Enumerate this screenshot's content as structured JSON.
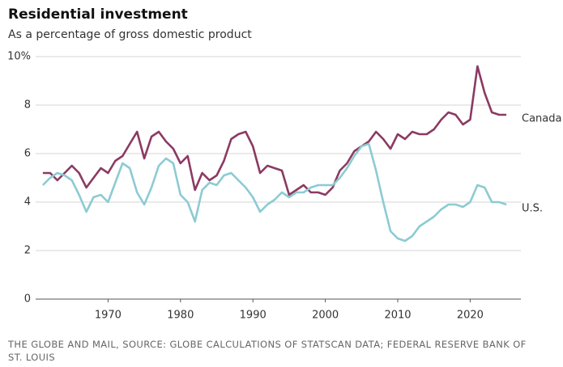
{
  "chart_data": {
    "type": "line",
    "title": "Residential investment",
    "subtitle": "As a percentage of gross domestic product",
    "source": "THE GLOBE AND MAIL, SOURCE: GLOBE CALCULATIONS OF STATSCAN DATA; FEDERAL RESERVE BANK OF ST. LOUIS",
    "x": [
      1961,
      1962,
      1963,
      1964,
      1965,
      1966,
      1967,
      1968,
      1969,
      1970,
      1971,
      1972,
      1973,
      1974,
      1975,
      1976,
      1977,
      1978,
      1979,
      1980,
      1981,
      1982,
      1983,
      1984,
      1985,
      1986,
      1987,
      1988,
      1989,
      1990,
      1991,
      1992,
      1993,
      1994,
      1995,
      1996,
      1997,
      1998,
      1999,
      2000,
      2001,
      2002,
      2003,
      2004,
      2005,
      2006,
      2007,
      2008,
      2009,
      2010,
      2011,
      2012,
      2013,
      2014,
      2015,
      2016,
      2017,
      2018,
      2019,
      2020,
      2021,
      2022,
      2023,
      2024,
      2025
    ],
    "series": [
      {
        "name": "Canada",
        "color": "#8b3a62",
        "values": [
          5.2,
          5.2,
          4.9,
          5.2,
          5.5,
          5.2,
          4.6,
          5.0,
          5.4,
          5.2,
          5.7,
          5.9,
          6.4,
          6.9,
          5.8,
          6.7,
          6.9,
          6.5,
          6.2,
          5.6,
          5.9,
          4.5,
          5.2,
          4.9,
          5.1,
          5.7,
          6.6,
          6.8,
          6.9,
          6.3,
          5.2,
          5.5,
          5.4,
          5.3,
          4.3,
          4.5,
          4.7,
          4.4,
          4.4,
          4.3,
          4.6,
          5.3,
          5.6,
          6.1,
          6.3,
          6.5,
          6.9,
          6.6,
          6.2,
          6.8,
          6.6,
          6.9,
          6.8,
          6.8,
          7.0,
          7.4,
          7.7,
          7.6,
          7.2,
          7.4,
          9.6,
          8.5,
          7.7,
          7.6,
          7.6
        ]
      },
      {
        "name": "U.S.",
        "color": "#8ccbd3",
        "values": [
          4.7,
          5.0,
          5.2,
          5.1,
          4.9,
          4.3,
          3.6,
          4.2,
          4.3,
          4.0,
          4.8,
          5.6,
          5.4,
          4.4,
          3.9,
          4.6,
          5.5,
          5.8,
          5.6,
          4.3,
          4.0,
          3.2,
          4.5,
          4.8,
          4.7,
          5.1,
          5.2,
          4.9,
          4.6,
          4.2,
          3.6,
          3.9,
          4.1,
          4.4,
          4.2,
          4.4,
          4.4,
          4.6,
          4.7,
          4.7,
          4.7,
          5.0,
          5.4,
          5.9,
          6.3,
          6.4,
          5.3,
          4.0,
          2.8,
          2.5,
          2.4,
          2.6,
          3.0,
          3.2,
          3.4,
          3.7,
          3.9,
          3.9,
          3.8,
          4.0,
          4.7,
          4.6,
          4.0,
          4.0,
          3.9
        ]
      }
    ],
    "xlim": [
      1960,
      2027
    ],
    "xticks": [
      1970,
      1980,
      1990,
      2000,
      2010,
      2020
    ],
    "ylim": [
      0,
      10
    ],
    "yticks": [
      0,
      2,
      4,
      6,
      8,
      {
        "value": 10,
        "label": "10%"
      }
    ],
    "grid": true
  }
}
